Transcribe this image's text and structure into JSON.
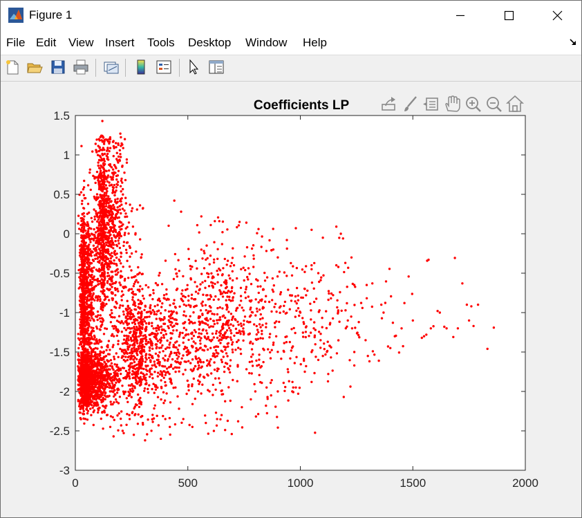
{
  "window": {
    "title": "Figure 1",
    "icons": {
      "app": "matlab-icon",
      "minimize": "minimize-icon",
      "maximize": "maximize-icon",
      "close": "close-icon"
    }
  },
  "menubar": {
    "items": [
      {
        "label": "File"
      },
      {
        "label": "Edit"
      },
      {
        "label": "View"
      },
      {
        "label": "Insert"
      },
      {
        "label": "Tools"
      },
      {
        "label": "Desktop"
      },
      {
        "label": "Window"
      },
      {
        "label": "Help"
      }
    ]
  },
  "toolbar": {
    "buttons": [
      "new-figure-icon",
      "open-file-icon",
      "save-icon",
      "print-icon",
      "link-plot-icon",
      "colorbar-icon",
      "legend-icon",
      "edit-plot-icon",
      "property-inspector-icon"
    ]
  },
  "axes_toolbar": {
    "buttons": [
      "export-icon",
      "brush-icon",
      "data-tips-icon",
      "pan-icon",
      "zoom-in-icon",
      "zoom-out-icon",
      "home-icon"
    ]
  },
  "colors": {
    "marker": "#ff0000",
    "axes_bg": "#ffffff",
    "figure_bg": "#f0f0f0"
  },
  "chart_data": {
    "type": "scatter",
    "title": "Coefficients LP",
    "xlabel": "",
    "ylabel": "",
    "xlim": [
      0,
      2000
    ],
    "ylim": [
      -3,
      1.5
    ],
    "xticks": [
      0,
      500,
      1000,
      1500,
      2000
    ],
    "yticks": [
      1.5,
      1,
      0.5,
      0,
      -0.5,
      -1,
      -1.5,
      -2,
      -2.5,
      -3
    ],
    "grid": false,
    "marker_color": "#ff0000",
    "approx_point_count": 5000,
    "density_regions": [
      {
        "x_center": 60,
        "x_spread": 60,
        "y_center": -1.85,
        "y_spread": 0.2,
        "weight": 0.25
      },
      {
        "x_center": 130,
        "x_spread": 50,
        "y_center": 0.1,
        "y_spread": 0.6,
        "weight": 0.2
      },
      {
        "x_center": 40,
        "x_spread": 25,
        "y_center": -0.8,
        "y_spread": 0.55,
        "weight": 0.2
      },
      {
        "x_center": 300,
        "x_spread": 150,
        "y_center": -1.4,
        "y_spread": 0.45,
        "weight": 0.2
      },
      {
        "x_center": 700,
        "x_spread": 300,
        "y_center": -1.1,
        "y_spread": 0.5,
        "weight": 0.15
      }
    ],
    "points": [
      [
        120,
        1.43
      ],
      [
        200,
        1.27
      ],
      [
        220,
        1.2
      ],
      [
        105,
        1.2
      ],
      [
        180,
        1.15
      ],
      [
        440,
        0.42
      ],
      [
        470,
        0.28
      ],
      [
        300,
        0.32
      ],
      [
        560,
        0.22
      ],
      [
        620,
        0.16
      ],
      [
        640,
        0.16
      ],
      [
        730,
        0.15
      ],
      [
        760,
        0.14
      ],
      [
        980,
        0.07
      ],
      [
        1050,
        0.05
      ],
      [
        1160,
        0.09
      ],
      [
        1180,
        0.0
      ],
      [
        1190,
        -0.06
      ],
      [
        1100,
        -0.05
      ],
      [
        940,
        -0.08
      ],
      [
        880,
        -0.2
      ],
      [
        900,
        -0.3
      ],
      [
        1570,
        -0.33
      ],
      [
        1720,
        -0.63
      ],
      [
        1740,
        -0.9
      ],
      [
        1760,
        -0.92
      ],
      [
        1790,
        -0.9
      ],
      [
        1750,
        -1.1
      ],
      [
        1770,
        -1.17
      ],
      [
        1860,
        -1.19
      ],
      [
        1700,
        -1.2
      ],
      [
        1680,
        -1.31
      ],
      [
        1650,
        -1.2
      ],
      [
        1640,
        -1.18
      ],
      [
        1620,
        -1.0
      ],
      [
        1610,
        -0.98
      ],
      [
        1580,
        -1.2
      ],
      [
        1560,
        -1.28
      ],
      [
        1550,
        -1.3
      ],
      [
        1540,
        -1.32
      ],
      [
        1500,
        -1.1
      ],
      [
        1450,
        -1.2
      ],
      [
        1420,
        -1.3
      ],
      [
        1390,
        -1.43
      ],
      [
        1400,
        -1.45
      ],
      [
        1370,
        -1.0
      ],
      [
        1360,
        -0.9
      ],
      [
        1320,
        -0.63
      ],
      [
        1240,
        -0.65
      ],
      [
        1260,
        -1.12
      ],
      [
        1230,
        -1.2
      ],
      [
        1240,
        -1.5
      ],
      [
        1290,
        -1.35
      ],
      [
        1300,
        -1.55
      ],
      [
        1240,
        -1.67
      ],
      [
        1160,
        -0.4
      ],
      [
        1200,
        -0.37
      ],
      [
        1080,
        -0.5
      ],
      [
        1050,
        -0.45
      ],
      [
        1020,
        -0.7
      ],
      [
        960,
        -0.85
      ],
      [
        1000,
        -1.0
      ],
      [
        1060,
        -1.2
      ],
      [
        1090,
        -1.35
      ],
      [
        1130,
        -1.42
      ],
      [
        1050,
        -1.5
      ],
      [
        1080,
        -1.6
      ],
      [
        1100,
        -1.55
      ],
      [
        1020,
        -1.75
      ],
      [
        1050,
        -1.88
      ],
      [
        980,
        -1.95
      ],
      [
        950,
        -1.87
      ],
      [
        900,
        -2.0
      ],
      [
        870,
        -2.05
      ],
      [
        850,
        -1.95
      ],
      [
        800,
        -2.0
      ],
      [
        780,
        -2.1
      ],
      [
        740,
        -2.2
      ],
      [
        650,
        -2.3
      ],
      [
        630,
        -2.35
      ],
      [
        580,
        -2.4
      ],
      [
        520,
        -2.45
      ],
      [
        480,
        -2.35
      ],
      [
        420,
        -2.45
      ],
      [
        380,
        -2.6
      ],
      [
        310,
        -2.62
      ],
      [
        260,
        -2.55
      ],
      [
        210,
        -2.5
      ],
      [
        170,
        -2.57
      ],
      [
        155,
        -2.45
      ],
      [
        300,
        -2.4
      ],
      [
        370,
        -2.43
      ],
      [
        400,
        -2.35
      ],
      [
        240,
        -2.3
      ]
    ]
  }
}
